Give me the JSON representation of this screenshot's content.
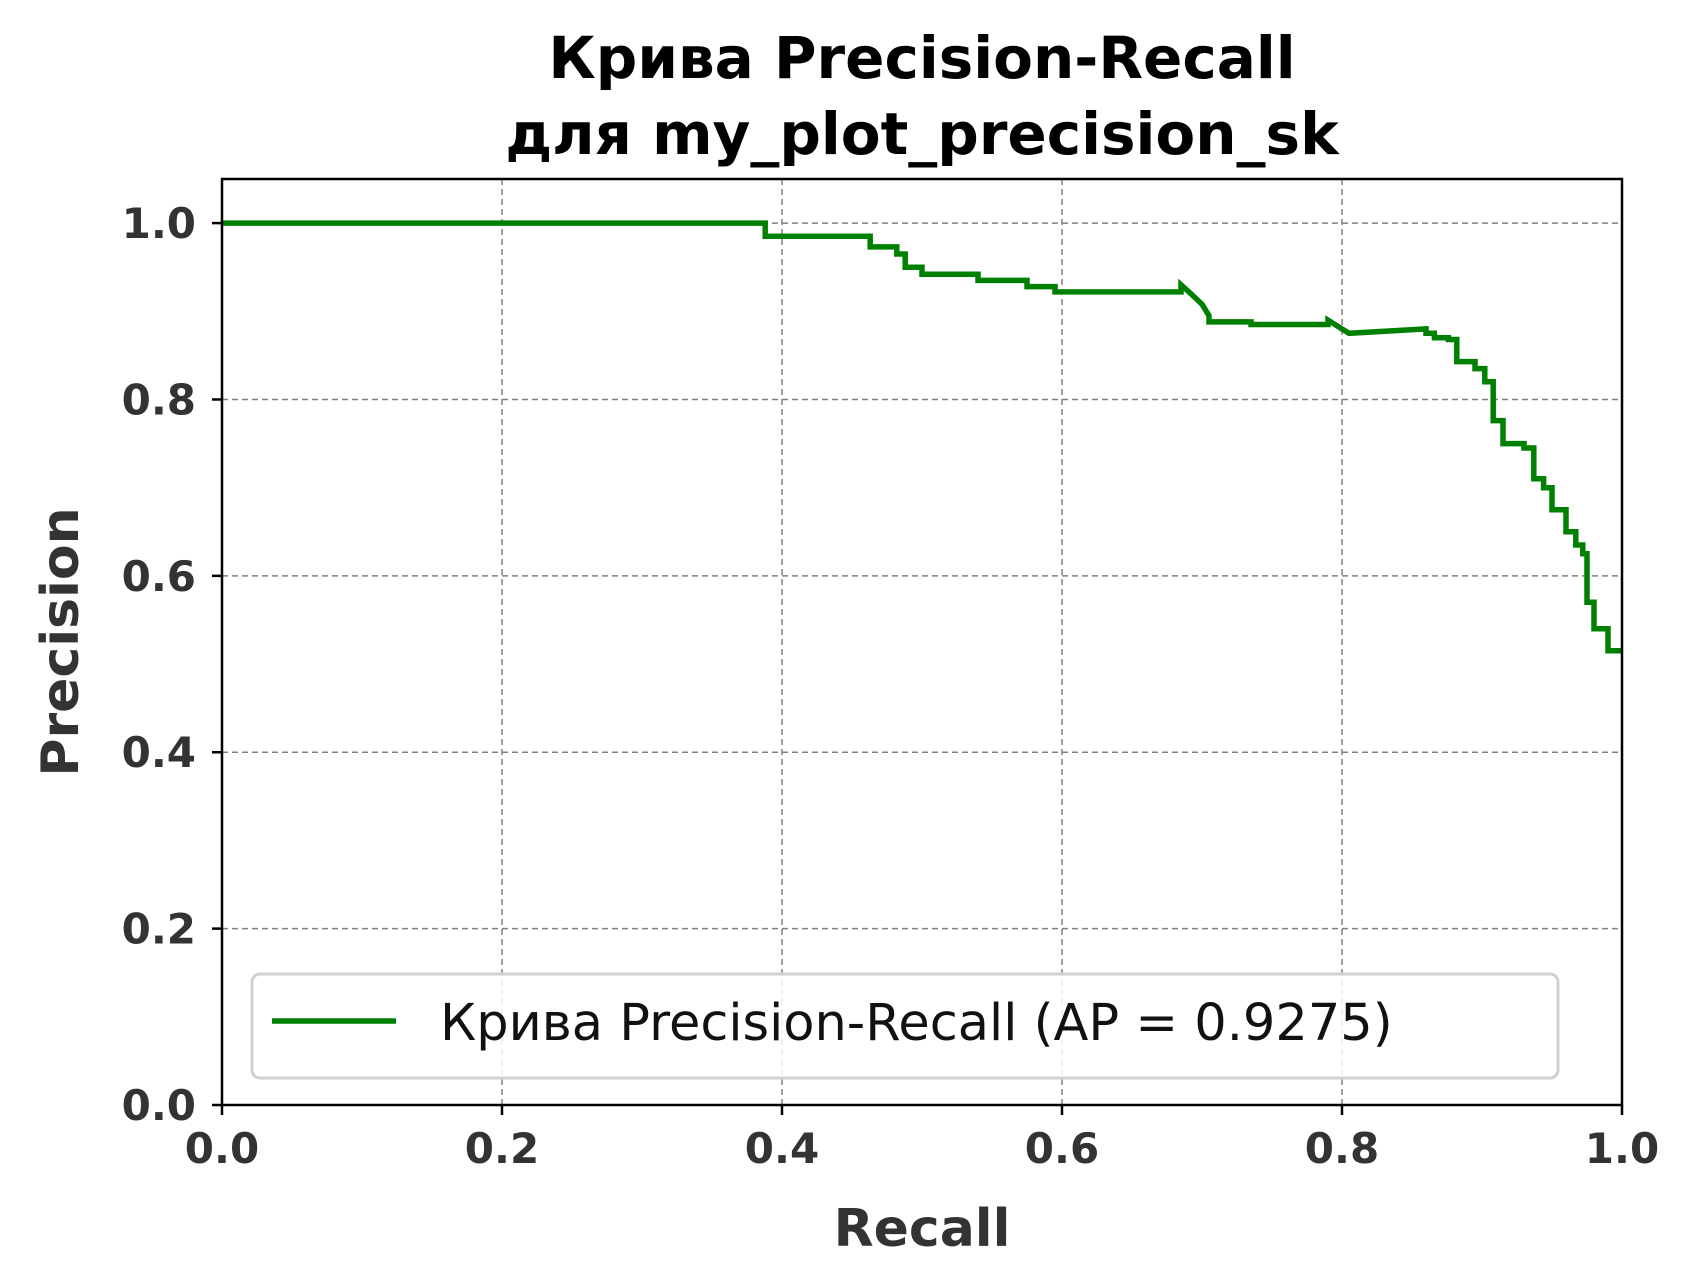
{
  "chart_data": {
    "type": "line",
    "title": [
      "Крива Precision-Recall",
      "для my_plot_precision_sk"
    ],
    "xlabel": "Recall",
    "ylabel": "Precision",
    "xlim": [
      0.0,
      1.0
    ],
    "ylim": [
      0.0,
      1.05
    ],
    "xticks": [
      "0.0",
      "0.2",
      "0.4",
      "0.6",
      "0.8",
      "1.0"
    ],
    "yticks": [
      "0.0",
      "0.2",
      "0.4",
      "0.6",
      "0.8",
      "1.0"
    ],
    "grid": true,
    "legend_position": "lower-right",
    "series": [
      {
        "name": "Крива Precision-Recall (AP = 0.9275)",
        "color": "#008000",
        "step": "post",
        "x": [
          0.0,
          0.388,
          0.388,
          0.463,
          0.463,
          0.482,
          0.482,
          0.488,
          0.488,
          0.5,
          0.5,
          0.51,
          0.51,
          0.54,
          0.54,
          0.575,
          0.575,
          0.595,
          0.595,
          0.685,
          0.685,
          0.692,
          0.692,
          0.7,
          0.7,
          0.705,
          0.705,
          0.735,
          0.735,
          0.79,
          0.79,
          0.797,
          0.797,
          0.805,
          0.805,
          0.86,
          0.86,
          0.866,
          0.866,
          0.876,
          0.876,
          0.882,
          0.882,
          0.895,
          0.895,
          0.902,
          0.902,
          0.908,
          0.908,
          0.915,
          0.915,
          0.93,
          0.93,
          0.937,
          0.937,
          0.944,
          0.944,
          0.95,
          0.95,
          0.96,
          0.96,
          0.967,
          0.967,
          0.972,
          0.972,
          0.975,
          0.975,
          0.98,
          0.98,
          0.99,
          0.99,
          1.0
        ],
        "y": [
          1.0,
          1.0,
          0.985,
          0.985,
          0.973,
          0.973,
          0.965,
          0.965,
          0.95,
          0.95,
          0.942,
          0.942,
          0.942,
          0.942,
          0.935,
          0.935,
          0.928,
          0.928,
          0.922,
          0.922,
          0.93,
          0.92,
          0.92,
          0.908,
          0.908,
          0.895,
          0.888,
          0.888,
          0.885,
          0.885,
          0.89,
          0.883,
          0.883,
          0.875,
          0.875,
          0.88,
          0.875,
          0.875,
          0.87,
          0.87,
          0.868,
          0.868,
          0.843,
          0.843,
          0.835,
          0.835,
          0.82,
          0.82,
          0.776,
          0.776,
          0.75,
          0.75,
          0.745,
          0.745,
          0.71,
          0.71,
          0.7,
          0.7,
          0.675,
          0.675,
          0.65,
          0.65,
          0.635,
          0.635,
          0.625,
          0.625,
          0.57,
          0.57,
          0.54,
          0.54,
          0.515,
          0.515
        ]
      }
    ]
  }
}
